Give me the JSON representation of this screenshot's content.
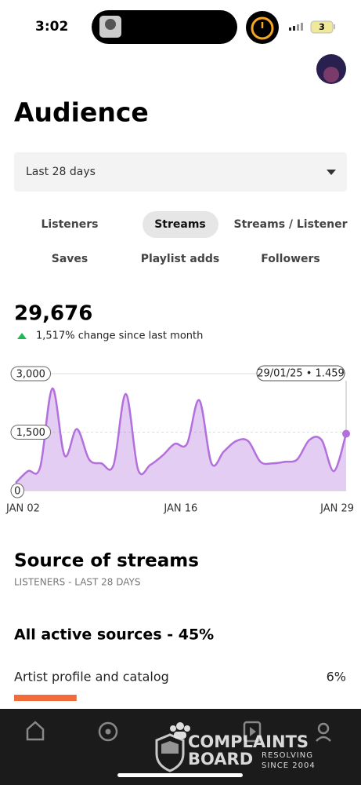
{
  "status_bar": {
    "time": "3:02",
    "battery": "3"
  },
  "title": "Audience",
  "date_range": "Last 28 days",
  "tabs": {
    "row1": [
      "Listeners",
      "Streams",
      "Streams / Listener"
    ],
    "row2": [
      "Saves",
      "Playlist adds",
      "Followers"
    ],
    "selected": "Streams"
  },
  "summary": {
    "total": "29,676",
    "change": "1,517% change since last month"
  },
  "chart_data": {
    "type": "line",
    "categories": [
      "JAN 02",
      null,
      null,
      null,
      null,
      null,
      null,
      null,
      null,
      null,
      null,
      null,
      null,
      null,
      "JAN 16",
      null,
      null,
      null,
      null,
      null,
      null,
      null,
      null,
      null,
      null,
      null,
      null,
      "JAN 29"
    ],
    "values": [
      200,
      500,
      600,
      2620,
      900,
      1580,
      800,
      700,
      660,
      2480,
      540,
      660,
      900,
      1200,
      1200,
      2320,
      700,
      1000,
      1270,
      1270,
      740,
      700,
      740,
      800,
      1300,
      1300,
      500,
      1459
    ],
    "color": "#b36fdc",
    "ylim": [
      0,
      3000
    ],
    "yticks": [
      0,
      {
        "value": 1500,
        "label": "1,500"
      },
      {
        "value": 3000,
        "label": "3,000"
      }
    ],
    "tooltip": "29/01/25 • 1.459"
  },
  "sources": {
    "title": "Source of streams",
    "subtitle": "LISTENERS - LAST 28 DAYS",
    "heading": "All active sources - 45%",
    "items": [
      {
        "name": "Artist profile and catalog",
        "value": 6,
        "value_label": "6%",
        "color": "#f26b3a"
      }
    ]
  },
  "watermark": {
    "line1": "COMPLAINTS",
    "line2": "BOARD",
    "tag1": "RESOLVING",
    "tag2": "SINCE 2004"
  }
}
